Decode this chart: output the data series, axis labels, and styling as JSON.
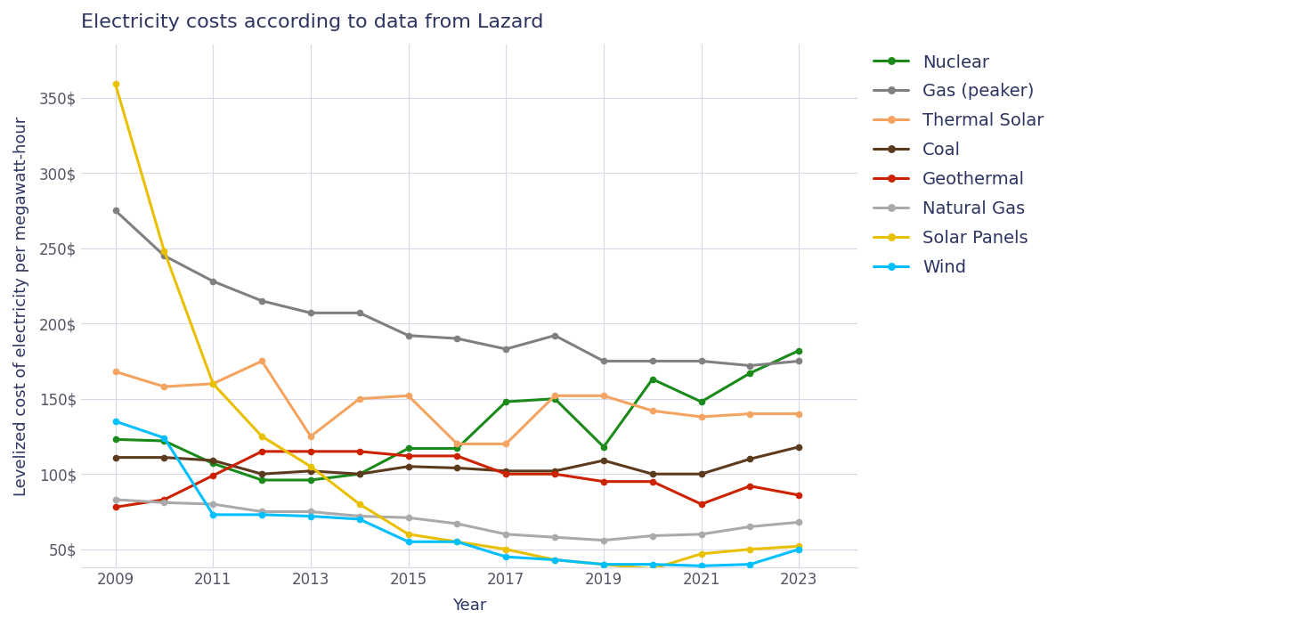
{
  "title": "Electricity costs according to data from Lazard",
  "xlabel": "Year",
  "ylabel": "Levelized cost of electricity per megawatt-hour",
  "years": [
    2009,
    2010,
    2011,
    2012,
    2013,
    2014,
    2015,
    2016,
    2017,
    2018,
    2019,
    2020,
    2021,
    2022,
    2023
  ],
  "series": {
    "Nuclear": {
      "color": "#1a8a1a",
      "values": [
        123,
        122,
        107,
        96,
        96,
        100,
        117,
        117,
        148,
        150,
        118,
        163,
        148,
        167,
        182
      ]
    },
    "Gas (peaker)": {
      "color": "#808080",
      "values": [
        275,
        245,
        228,
        215,
        207,
        207,
        192,
        190,
        183,
        192,
        175,
        175,
        175,
        172,
        175
      ]
    },
    "Thermal Solar": {
      "color": "#f4a460",
      "values": [
        168,
        158,
        160,
        175,
        125,
        150,
        152,
        120,
        120,
        152,
        152,
        142,
        138,
        140,
        140
      ]
    },
    "Coal": {
      "color": "#5c3a1e",
      "values": [
        111,
        111,
        109,
        100,
        102,
        100,
        105,
        104,
        102,
        102,
        109,
        100,
        100,
        110,
        118
      ]
    },
    "Geothermal": {
      "color": "#cc2200",
      "values": [
        78,
        83,
        99,
        115,
        115,
        115,
        112,
        112,
        100,
        100,
        95,
        95,
        80,
        92,
        86
      ]
    },
    "Natural Gas": {
      "color": "#aaaaaa",
      "values": [
        83,
        81,
        80,
        75,
        75,
        72,
        71,
        67,
        60,
        58,
        56,
        59,
        60,
        65,
        68
      ]
    },
    "Solar Panels": {
      "color": "#e8c000",
      "values": [
        359,
        248,
        160,
        125,
        105,
        80,
        60,
        55,
        50,
        43,
        40,
        37,
        47,
        50,
        52
      ]
    },
    "Wind": {
      "color": "#00bfff",
      "values": [
        135,
        124,
        73,
        73,
        72,
        70,
        55,
        55,
        45,
        43,
        40,
        40,
        39,
        40,
        50
      ]
    }
  },
  "ylim": [
    38,
    385
  ],
  "yticks": [
    50,
    100,
    150,
    200,
    250,
    300,
    350
  ],
  "xticks": [
    2009,
    2011,
    2013,
    2015,
    2017,
    2019,
    2021,
    2023
  ],
  "xlim": [
    2008.3,
    2024.2
  ],
  "background_color": "#ffffff",
  "grid_color": "#d8d8e8",
  "title_color": "#2d3561",
  "label_color": "#2d3561",
  "tick_color": "#555566",
  "marker": "o",
  "markersize": 4.5,
  "linewidth": 2.2,
  "title_fontsize": 16,
  "axis_label_fontsize": 13,
  "tick_fontsize": 12,
  "legend_fontsize": 14
}
